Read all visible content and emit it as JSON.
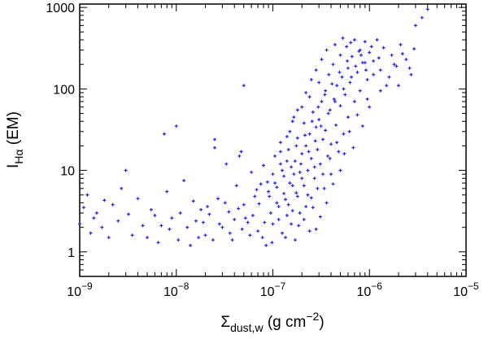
{
  "chart_data": {
    "type": "scatter",
    "title": "",
    "xlabel": {
      "base": "Σ",
      "sub": "dust,w",
      "unit": " (g cm",
      "exp": "−2",
      "close": ")"
    },
    "ylabel": {
      "base": "I",
      "sub": "Hα",
      "unit": " (EM)"
    },
    "x_scale": "log",
    "y_scale": "log",
    "xlim": [
      1e-09,
      1e-05
    ],
    "ylim": [
      0.5,
      1100
    ],
    "x_ticks": [
      {
        "value": 1e-09,
        "mant": "10",
        "exp": "−9"
      },
      {
        "value": 1e-08,
        "mant": "10",
        "exp": "−8"
      },
      {
        "value": 1e-07,
        "mant": "10",
        "exp": "−7"
      },
      {
        "value": 1e-06,
        "mant": "10",
        "exp": "−6"
      },
      {
        "value": 1e-05,
        "mant": "10",
        "exp": "−5"
      }
    ],
    "y_ticks": [
      {
        "value": 1,
        "label": "1"
      },
      {
        "value": 10,
        "label": "10"
      },
      {
        "value": 100,
        "label": "100"
      },
      {
        "value": 1000,
        "label": "1000"
      }
    ],
    "marker": {
      "shape": "plus",
      "color": "#2222ee"
    },
    "points": [
      [
        1e-09,
        2.2
      ],
      [
        1.1e-09,
        3.5
      ],
      [
        1.2e-09,
        5.0
      ],
      [
        1.3e-09,
        1.7
      ],
      [
        1.4e-09,
        2.6
      ],
      [
        1.5e-09,
        3.0
      ],
      [
        1.7e-09,
        2.0
      ],
      [
        1.8e-09,
        4.3
      ],
      [
        2e-09,
        1.5
      ],
      [
        2.2e-09,
        3.8
      ],
      [
        2.5e-09,
        2.4
      ],
      [
        2.7e-09,
        6.0
      ],
      [
        3e-09,
        10.0
      ],
      [
        3.2e-09,
        2.9
      ],
      [
        3.5e-09,
        1.6
      ],
      [
        4e-09,
        4.5
      ],
      [
        4.5e-09,
        2.1
      ],
      [
        5e-09,
        1.5
      ],
      [
        5.5e-09,
        3.3
      ],
      [
        6e-09,
        2.8
      ],
      [
        6.5e-09,
        1.3
      ],
      [
        7e-09,
        2.1
      ],
      [
        7.5e-09,
        28
      ],
      [
        8e-09,
        5.5
      ],
      [
        8.5e-09,
        1.9
      ],
      [
        9e-09,
        2.6
      ],
      [
        1e-08,
        35
      ],
      [
        1.05e-08,
        1.4
      ],
      [
        1.1e-08,
        3.0
      ],
      [
        1.2e-08,
        7.5
      ],
      [
        1.3e-08,
        2.0
      ],
      [
        1.4e-08,
        1.2
      ],
      [
        1.5e-08,
        4.2
      ],
      [
        1.6e-08,
        2.4
      ],
      [
        1.8e-08,
        3.3
      ],
      [
        2e-08,
        1.6
      ],
      [
        2.2e-08,
        2.9
      ],
      [
        2.5e-08,
        19
      ],
      [
        2.5e-08,
        24
      ],
      [
        2.7e-08,
        4.5
      ],
      [
        3e-08,
        2.0
      ],
      [
        3.3e-08,
        12
      ],
      [
        3.5e-08,
        3.1
      ],
      [
        3.8e-08,
        1.4
      ],
      [
        4.2e-08,
        6.5
      ],
      [
        4.5e-08,
        15
      ],
      [
        4.7e-08,
        17
      ],
      [
        5e-08,
        110
      ],
      [
        5e-08,
        3.8
      ],
      [
        5.5e-08,
        2.3
      ],
      [
        6e-08,
        9.5
      ],
      [
        6.5e-08,
        4.8
      ],
      [
        7e-08,
        1.8
      ],
      [
        7.5e-08,
        6.8
      ],
      [
        8e-08,
        11.5
      ],
      [
        8.5e-08,
        1.2
      ],
      [
        9e-08,
        5.5
      ],
      [
        9.5e-08,
        3.0
      ],
      [
        1e-07,
        9.0
      ],
      [
        1e-07,
        2.2
      ],
      [
        1.05e-07,
        15
      ],
      [
        1.1e-07,
        6.2
      ],
      [
        1.15e-07,
        3.6
      ],
      [
        1.2e-07,
        22
      ],
      [
        1.2e-07,
        12
      ],
      [
        1.25e-07,
        1.7
      ],
      [
        1.3e-07,
        8.5
      ],
      [
        1.35e-07,
        4.4
      ],
      [
        1.4e-07,
        2.8
      ],
      [
        1.45e-07,
        18
      ],
      [
        1.5e-07,
        30
      ],
      [
        1.5e-07,
        7.0
      ],
      [
        1.55e-07,
        11
      ],
      [
        1.6e-07,
        3.2
      ],
      [
        1.65e-07,
        45
      ],
      [
        1.7e-07,
        13
      ],
      [
        1.75e-07,
        5.3
      ],
      [
        1.8e-07,
        25
      ],
      [
        1.85e-07,
        2.1
      ],
      [
        1.9e-07,
        9.5
      ],
      [
        2e-07,
        60
      ],
      [
        2e-07,
        16
      ],
      [
        2.1e-07,
        6.5
      ],
      [
        2.1e-07,
        38
      ],
      [
        2.2e-07,
        3.6
      ],
      [
        2.2e-07,
        20
      ],
      [
        2.3e-07,
        10
      ],
      [
        2.4e-07,
        80
      ],
      [
        2.4e-07,
        28
      ],
      [
        2.5e-07,
        4.6
      ],
      [
        2.5e-07,
        14
      ],
      [
        2.6e-07,
        52
      ],
      [
        2.7e-07,
        8.0
      ],
      [
        2.8e-07,
        34
      ],
      [
        2.8e-07,
        1.9
      ],
      [
        2.9e-07,
        18
      ],
      [
        3e-07,
        120
      ],
      [
        3e-07,
        42
      ],
      [
        3.1e-07,
        12
      ],
      [
        3.2e-07,
        70
      ],
      [
        3.3e-07,
        24
      ],
      [
        3.4e-07,
        6.0
      ],
      [
        3.5e-07,
        95
      ],
      [
        3.5e-07,
        31
      ],
      [
        3.7e-07,
        15
      ],
      [
        3.8e-07,
        150
      ],
      [
        3.9e-07,
        55
      ],
      [
        4e-07,
        21
      ],
      [
        4e-07,
        9.0
      ],
      [
        4.2e-07,
        200
      ],
      [
        4.3e-07,
        75
      ],
      [
        4.5e-07,
        36
      ],
      [
        4.6e-07,
        110
      ],
      [
        4.8e-07,
        17
      ],
      [
        5e-07,
        260
      ],
      [
        5e-07,
        62
      ],
      [
        5.2e-07,
        140
      ],
      [
        5.4e-07,
        28
      ],
      [
        5.6e-07,
        85
      ],
      [
        5.8e-07,
        330
      ],
      [
        6e-07,
        180
      ],
      [
        6e-07,
        45
      ],
      [
        6.3e-07,
        120
      ],
      [
        6.6e-07,
        250
      ],
      [
        7e-07,
        70
      ],
      [
        7e-07,
        400
      ],
      [
        7.5e-07,
        160
      ],
      [
        8e-07,
        300
      ],
      [
        8e-07,
        95
      ],
      [
        8.5e-07,
        210
      ],
      [
        9e-07,
        380
      ],
      [
        9.5e-07,
        130
      ],
      [
        1e-06,
        280
      ],
      [
        1e-06,
        60
      ],
      [
        1.1e-06,
        220
      ],
      [
        1.2e-06,
        400
      ],
      [
        1.3e-06,
        170
      ],
      [
        1.4e-06,
        320
      ],
      [
        1.5e-06,
        110
      ],
      [
        1.7e-06,
        260
      ],
      [
        1.9e-06,
        190
      ],
      [
        2.1e-06,
        350
      ],
      [
        2.4e-06,
        230
      ],
      [
        2.7e-06,
        150
      ],
      [
        3e-06,
        600
      ],
      [
        3.5e-06,
        750
      ],
      [
        4e-06,
        950
      ],
      [
        1.1e-07,
        4.0
      ],
      [
        1.15e-07,
        2.5
      ],
      [
        1.3e-07,
        5.2
      ],
      [
        1.35e-07,
        1.5
      ],
      [
        1.45e-07,
        3.8
      ],
      [
        1.55e-07,
        2.2
      ],
      [
        1.6e-07,
        6.5
      ],
      [
        1.7e-07,
        1.4
      ],
      [
        1.8e-07,
        4.8
      ],
      [
        1.9e-07,
        3.0
      ],
      [
        2e-07,
        8.0
      ],
      [
        2.1e-07,
        2.5
      ],
      [
        2.3e-07,
        5.0
      ],
      [
        2.4e-07,
        1.8
      ],
      [
        2.6e-07,
        3.5
      ],
      [
        2.7e-07,
        11
      ],
      [
        2.9e-07,
        6.0
      ],
      [
        3.1e-07,
        2.7
      ],
      [
        3.3e-07,
        9.0
      ],
      [
        3.6e-07,
        4.0
      ],
      [
        3.9e-07,
        14
      ],
      [
        4.2e-07,
        6.8
      ],
      [
        4.6e-07,
        22
      ],
      [
        5e-07,
        10
      ],
      [
        5.5e-07,
        16
      ],
      [
        6.2e-07,
        30
      ],
      [
        6.8e-07,
        19
      ],
      [
        7.5e-07,
        48
      ],
      [
        8.5e-07,
        35
      ],
      [
        9.5e-07,
        75
      ],
      [
        1.2e-07,
        17
      ],
      [
        1.4e-07,
        26
      ],
      [
        1.6e-07,
        40
      ],
      [
        1.8e-07,
        55
      ],
      [
        2.2e-07,
        90
      ],
      [
        2.5e-07,
        130
      ],
      [
        2.8e-07,
        170
      ],
      [
        3.2e-07,
        230
      ],
      [
        3.6e-07,
        300
      ],
      [
        4.4e-07,
        350
      ],
      [
        5.3e-07,
        420
      ],
      [
        6.4e-07,
        370
      ],
      [
        7.8e-07,
        290
      ],
      [
        9e-07,
        210
      ],
      [
        1.1e-06,
        150
      ],
      [
        1.3e-06,
        95
      ],
      [
        1.6e-06,
        140
      ],
      [
        1.8e-06,
        200
      ],
      [
        2e-06,
        110
      ],
      [
        2.2e-06,
        270
      ],
      [
        2.6e-06,
        180
      ],
      [
        2.9e-06,
        310
      ],
      [
        1.05e-07,
        7.0
      ],
      [
        1.25e-07,
        10
      ],
      [
        1.4e-07,
        13
      ],
      [
        1.65e-07,
        9.0
      ],
      [
        1.75e-07,
        20
      ],
      [
        1.95e-07,
        12
      ],
      [
        2.15e-07,
        27
      ],
      [
        2.35e-07,
        17
      ],
      [
        2.55e-07,
        40
      ],
      [
        2.75e-07,
        23
      ],
      [
        2.95e-07,
        60
      ],
      [
        3.15e-07,
        35
      ],
      [
        3.45e-07,
        85
      ],
      [
        3.75e-07,
        50
      ],
      [
        4.1e-07,
        115
      ],
      [
        4.4e-07,
        70
      ],
      [
        4.9e-07,
        160
      ],
      [
        5.4e-07,
        100
      ],
      [
        5.9e-07,
        220
      ],
      [
        6.5e-07,
        140
      ],
      [
        7.2e-07,
        190
      ],
      [
        8.2e-07,
        260
      ],
      [
        9.2e-07,
        170
      ],
      [
        1.05e-06,
        330
      ],
      [
        1.25e-06,
        240
      ],
      [
        6.2e-08,
        2.8
      ],
      [
        7.2e-08,
        3.9
      ],
      [
        8.2e-08,
        2.3
      ],
      [
        9.2e-08,
        4.8
      ],
      [
        5.8e-08,
        1.6
      ],
      [
        6.8e-08,
        5.8
      ],
      [
        7.8e-08,
        1.5
      ],
      [
        8.8e-08,
        7.2
      ],
      [
        9.8e-08,
        1.3
      ],
      [
        5.2e-08,
        2.6
      ],
      [
        4.8e-08,
        1.9
      ],
      [
        4.4e-08,
        3.4
      ],
      [
        4e-08,
        2.5
      ],
      [
        3.6e-08,
        1.7
      ],
      [
        3.2e-08,
        4.0
      ],
      [
        2.8e-08,
        2.2
      ],
      [
        2.4e-08,
        1.4
      ],
      [
        2.1e-08,
        3.6
      ],
      [
        1.9e-08,
        2.3
      ],
      [
        1.7e-08,
        1.5
      ]
    ]
  }
}
